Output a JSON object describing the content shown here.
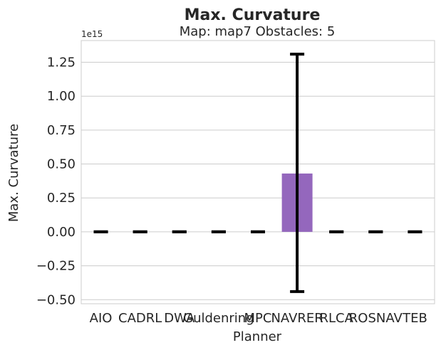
{
  "chart_data": {
    "type": "bar",
    "title": "Max. Curvature",
    "subtitle": "Map: map7 Obstacles: 5",
    "xlabel": "Planner",
    "ylabel": "Max. Curvature",
    "offset_label": "1e15",
    "categories": [
      "AIO",
      "CADRL",
      "DWA",
      "Guldenring",
      "MPC",
      "NAVRER",
      "RLCA",
      "ROSNAV",
      "TEB"
    ],
    "values": [
      0,
      0,
      0,
      0,
      0,
      0.43,
      0,
      0,
      0
    ],
    "error_low": [
      0,
      0,
      0,
      0,
      0,
      -0.44,
      0,
      0,
      0
    ],
    "error_high": [
      0,
      0,
      0,
      0,
      0,
      1.31,
      0,
      0,
      0
    ],
    "yticks": [
      "−0.50",
      "−0.25",
      "0.00",
      "0.25",
      "0.50",
      "0.75",
      "1.00",
      "1.25"
    ],
    "ytick_values": [
      -0.5,
      -0.25,
      0,
      0.25,
      0.5,
      0.75,
      1.0,
      1.25
    ],
    "ylim": [
      -0.53,
      1.41
    ],
    "grid": true,
    "bar_color": "#9467bd",
    "errorbar_color": "#000000",
    "grid_color": "#cccccc"
  }
}
